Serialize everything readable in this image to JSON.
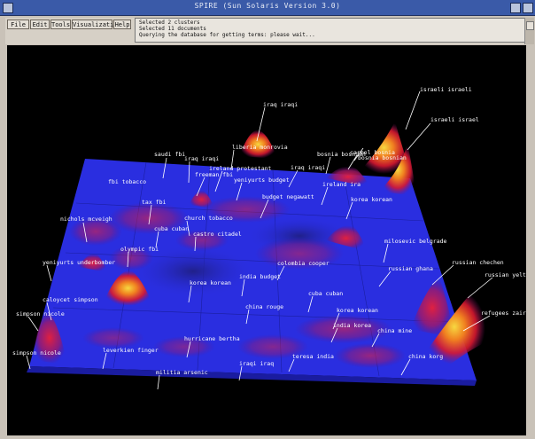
{
  "window": {
    "title": "SPIRE   (Sun Solaris Version 3.0)"
  },
  "menu": {
    "file": "File",
    "edit": "Edit",
    "tools": "Tools",
    "visualizations": "Visualizations",
    "help": "Help"
  },
  "messages": [
    "Selected 2 clusters",
    "Selected 11 documents",
    "Querying the database for getting terms: please wait..."
  ],
  "topics": [
    "israeli israeli",
    "israeli israel",
    "iraq iraqi",
    "liberia monrovia",
    "saudi fbi",
    "iraq iraqi",
    "iraq iraqi",
    "ireland protestant",
    "bosnia bosnian",
    "carmel bosnia",
    "bosnia bosnian",
    "fbi tobacco",
    "freeman fbi",
    "yeniyurts budget",
    "ireland ira",
    "budget negawatt",
    "tax fbi",
    "korea korean",
    "nichols mcveigh",
    "church tobacco",
    "cuba cuban",
    "castro citadel",
    "milosevic belgrade",
    "olympic fbi",
    "russian chechen",
    "colombia cooper",
    "yeniyurts underbomber",
    "russian ghana",
    "russian yeltsin",
    "caloycet simpson",
    "india budget",
    "korea korean",
    "simpson nicole",
    "cuba cuban",
    "refugees zaire",
    "china rouge",
    "korea korean",
    "india korea",
    "china mine",
    "hurricane bertha",
    "simpson nicole",
    "teresa india",
    "china korg",
    "leverkien finger",
    "iraqi iraq",
    "militia arsenic"
  ],
  "scene": {
    "background": "#000000",
    "terrain_base": "#2a2ee0",
    "peak_colors": [
      "#d81830",
      "#f08020",
      "#f7d840"
    ]
  }
}
